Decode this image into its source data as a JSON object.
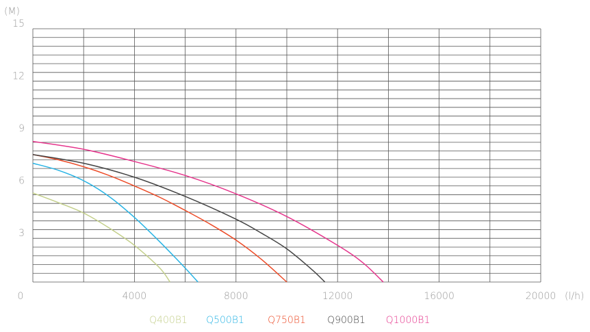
{
  "chart_data": {
    "type": "line",
    "y_label": "(M)",
    "x_label": "(l/h)",
    "xlim": [
      0,
      20000
    ],
    "ylim": [
      0.5,
      15
    ],
    "xticks": [
      0,
      4000,
      8000,
      12000,
      16000,
      20000
    ],
    "yticks": [
      3,
      6,
      9,
      12,
      15
    ],
    "x_gridlines": [
      0,
      2000,
      4000,
      6000,
      8000,
      10000,
      12000,
      14000,
      16000,
      18000,
      20000
    ],
    "y_gridlines": [
      0.5,
      1,
      1.5,
      2,
      2.5,
      3,
      3.5,
      4,
      4.5,
      5,
      5.5,
      6,
      6.5,
      7,
      7.5,
      8,
      8.5,
      9,
      9.5,
      10,
      10.5,
      11,
      11.5,
      12,
      12.5,
      13,
      13.5,
      14,
      14.5,
      15
    ],
    "grid": true,
    "series": [
      {
        "name": "Q400B1",
        "color": "#c3cf8a",
        "x": [
          0,
          1000,
          2000,
          3000,
          4000,
          5000,
          5400
        ],
        "values": [
          5.6,
          5.05,
          4.45,
          3.6,
          2.6,
          1.3,
          0.5
        ]
      },
      {
        "name": "Q500B1",
        "color": "#27b3e4",
        "x": [
          0,
          1000,
          2000,
          3000,
          4000,
          5000,
          6000,
          6500
        ],
        "values": [
          7.3,
          6.9,
          6.3,
          5.4,
          4.2,
          2.8,
          1.3,
          0.5
        ]
      },
      {
        "name": "Q750B1",
        "color": "#ec4a26",
        "x": [
          0,
          1000,
          2000,
          3000,
          4000,
          5000,
          6000,
          7000,
          8000,
          9000,
          10000
        ],
        "values": [
          7.8,
          7.5,
          7.1,
          6.6,
          6.0,
          5.35,
          4.6,
          3.8,
          2.9,
          1.8,
          0.5
        ]
      },
      {
        "name": "Q900B1",
        "color": "#444444",
        "x": [
          0,
          2000,
          4000,
          6000,
          8000,
          9000,
          10000,
          11000,
          11500
        ],
        "values": [
          7.8,
          7.3,
          6.5,
          5.4,
          4.1,
          3.3,
          2.4,
          1.2,
          0.5
        ]
      },
      {
        "name": "Q1000B1",
        "color": "#e5358c",
        "x": [
          0,
          2000,
          4000,
          6000,
          8000,
          10000,
          12000,
          13000,
          13800
        ],
        "values": [
          8.55,
          8.1,
          7.4,
          6.6,
          5.55,
          4.25,
          2.6,
          1.6,
          0.5
        ]
      }
    ]
  }
}
